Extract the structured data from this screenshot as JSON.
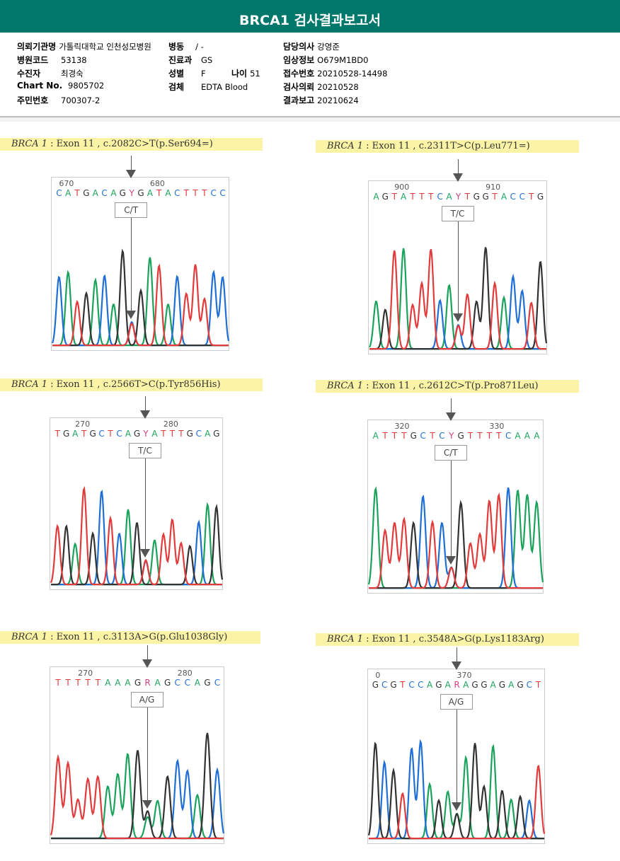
{
  "title": "BRCA1 검사결과보고서",
  "info": {
    "institution": {
      "label": "의뢰기관명",
      "value": "가톨릭대학교 인천성모병원"
    },
    "ward": {
      "label": "병동",
      "value": "/ -"
    },
    "hospital_code": {
      "label": "병원코드",
      "value": "53138"
    },
    "department": {
      "label": "진료과",
      "value": "GS"
    },
    "patient": {
      "label": "수진자",
      "value": "최경숙"
    },
    "sex": {
      "label": "성별",
      "value": "F"
    },
    "age": {
      "label": "나이",
      "value": "51"
    },
    "chart_no": {
      "label": "Chart No.",
      "value": "9805702"
    },
    "specimen": {
      "label": "검체",
      "value": "EDTA Blood"
    },
    "resident_no": {
      "label": "주민번호",
      "value": "700307-2"
    },
    "doctor": {
      "label": "담당의사",
      "value": "강영준"
    },
    "clinical_info": {
      "label": "임상정보",
      "value": "O679M1BD0"
    },
    "receipt_no": {
      "label": "접수번호",
      "value": "20210528-14498"
    },
    "request_date": {
      "label": "검사의뢰",
      "value": "20210528"
    },
    "report_date": {
      "label": "결과보고",
      "value": "20210624"
    }
  },
  "colors": {
    "A": "#1ba35c",
    "C": "#1f6fd6",
    "G": "#333333",
    "T": "#e23b3b",
    "Y": "#d2407f",
    "R": "#d2407f",
    "header": "#00776b"
  },
  "variants": [
    {
      "gene": "BRCA 1",
      "desc": ": Exon 11 , c.2082C>T(p.Ser694=)",
      "seq": "CATGACAGYGATACTTTCC",
      "pos_labels": [
        {
          "text": "670",
          "idx": 0
        },
        {
          "text": "680",
          "idx": 10
        }
      ],
      "call": "C/T",
      "pair": [
        "C",
        "T"
      ]
    },
    {
      "gene": "BRCA 1",
      "desc": ": Exon 11 , c.2311T>C(p.Leu771=)",
      "seq": "AGTATTTCAYTGGTACCTG",
      "pos_labels": [
        {
          "text": "900",
          "idx": 2
        },
        {
          "text": "910",
          "idx": 12
        }
      ],
      "call": "T/C",
      "pair": [
        "T",
        "C"
      ]
    },
    {
      "gene": "BRCA 1",
      "desc": ": Exon 11 , c.2566T>C(p.Tyr856His)",
      "seq": "TGATGCTCAGYATTTGCAG",
      "pos_labels": [
        {
          "text": "270",
          "idx": 2
        },
        {
          "text": "280",
          "idx": 12
        }
      ],
      "call": "T/C",
      "pair": [
        "T",
        "C"
      ]
    },
    {
      "gene": "BRCA 1",
      "desc": ": Exon 11 , c.2612C>T(p.Pro871Leu)",
      "seq": "ATTTGCTCYGTTTTCAAA",
      "pos_labels": [
        {
          "text": "320",
          "idx": 2
        },
        {
          "text": "330",
          "idx": 12
        }
      ],
      "call": "C/T",
      "pair": [
        "C",
        "T"
      ]
    },
    {
      "gene": "BRCA 1",
      "desc": ": Exon 11 , c.3113A>G(p.Glu1038Gly)",
      "seq": "TTTTTAAAGRAGCCAGC",
      "pos_labels": [
        {
          "text": "270",
          "idx": 2
        },
        {
          "text": "280",
          "idx": 12
        }
      ],
      "call": "A/G",
      "pair": [
        "A",
        "G"
      ]
    },
    {
      "gene": "BRCA 1",
      "desc": ": Exon 11 , c.3548A>G(p.Lys1183Arg)",
      "seq": "GCGTCCAGARAGGAGAGCT",
      "pos_labels": [
        {
          "text": "0",
          "idx": 0
        },
        {
          "text": "370",
          "idx": 9
        }
      ],
      "call": "A/G",
      "pair": [
        "A",
        "G"
      ]
    }
  ]
}
